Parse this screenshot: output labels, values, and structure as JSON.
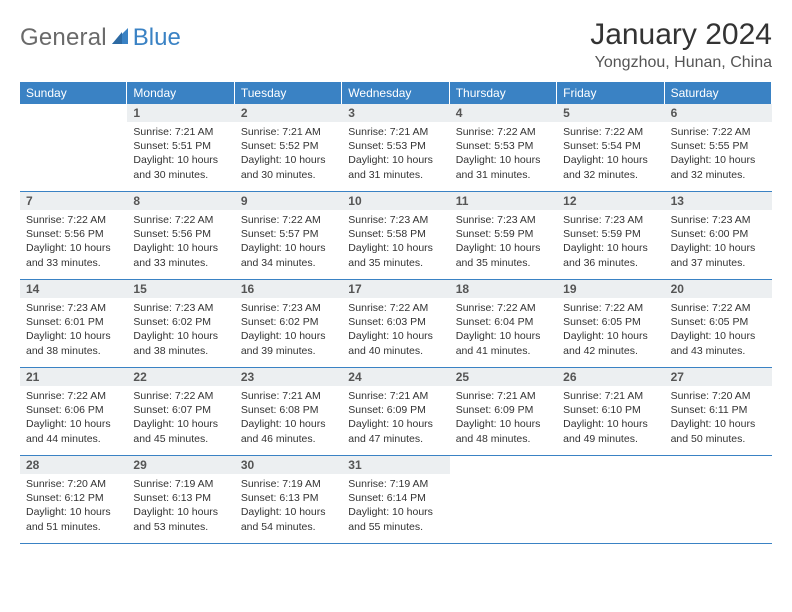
{
  "logo": {
    "text1": "General",
    "text2": "Blue"
  },
  "title": "January 2024",
  "location": "Yongzhou, Hunan, China",
  "colors": {
    "header_bg": "#3a82c4",
    "cell_num_bg": "#eceff1",
    "border": "#3a82c4",
    "logo_gray": "#6a6a6a",
    "logo_blue": "#3a82c4"
  },
  "fonts": {
    "title_size": 30,
    "location_size": 16,
    "dayhead_size": 12,
    "body_size": 10.5
  },
  "dayNames": [
    "Sunday",
    "Monday",
    "Tuesday",
    "Wednesday",
    "Thursday",
    "Friday",
    "Saturday"
  ],
  "weeks": [
    [
      {
        "empty": true
      },
      {
        "num": "1",
        "sunrise": "Sunrise: 7:21 AM",
        "sunset": "Sunset: 5:51 PM",
        "day1": "Daylight: 10 hours",
        "day2": "and 30 minutes."
      },
      {
        "num": "2",
        "sunrise": "Sunrise: 7:21 AM",
        "sunset": "Sunset: 5:52 PM",
        "day1": "Daylight: 10 hours",
        "day2": "and 30 minutes."
      },
      {
        "num": "3",
        "sunrise": "Sunrise: 7:21 AM",
        "sunset": "Sunset: 5:53 PM",
        "day1": "Daylight: 10 hours",
        "day2": "and 31 minutes."
      },
      {
        "num": "4",
        "sunrise": "Sunrise: 7:22 AM",
        "sunset": "Sunset: 5:53 PM",
        "day1": "Daylight: 10 hours",
        "day2": "and 31 minutes."
      },
      {
        "num": "5",
        "sunrise": "Sunrise: 7:22 AM",
        "sunset": "Sunset: 5:54 PM",
        "day1": "Daylight: 10 hours",
        "day2": "and 32 minutes."
      },
      {
        "num": "6",
        "sunrise": "Sunrise: 7:22 AM",
        "sunset": "Sunset: 5:55 PM",
        "day1": "Daylight: 10 hours",
        "day2": "and 32 minutes."
      }
    ],
    [
      {
        "num": "7",
        "sunrise": "Sunrise: 7:22 AM",
        "sunset": "Sunset: 5:56 PM",
        "day1": "Daylight: 10 hours",
        "day2": "and 33 minutes."
      },
      {
        "num": "8",
        "sunrise": "Sunrise: 7:22 AM",
        "sunset": "Sunset: 5:56 PM",
        "day1": "Daylight: 10 hours",
        "day2": "and 33 minutes."
      },
      {
        "num": "9",
        "sunrise": "Sunrise: 7:22 AM",
        "sunset": "Sunset: 5:57 PM",
        "day1": "Daylight: 10 hours",
        "day2": "and 34 minutes."
      },
      {
        "num": "10",
        "sunrise": "Sunrise: 7:23 AM",
        "sunset": "Sunset: 5:58 PM",
        "day1": "Daylight: 10 hours",
        "day2": "and 35 minutes."
      },
      {
        "num": "11",
        "sunrise": "Sunrise: 7:23 AM",
        "sunset": "Sunset: 5:59 PM",
        "day1": "Daylight: 10 hours",
        "day2": "and 35 minutes."
      },
      {
        "num": "12",
        "sunrise": "Sunrise: 7:23 AM",
        "sunset": "Sunset: 5:59 PM",
        "day1": "Daylight: 10 hours",
        "day2": "and 36 minutes."
      },
      {
        "num": "13",
        "sunrise": "Sunrise: 7:23 AM",
        "sunset": "Sunset: 6:00 PM",
        "day1": "Daylight: 10 hours",
        "day2": "and 37 minutes."
      }
    ],
    [
      {
        "num": "14",
        "sunrise": "Sunrise: 7:23 AM",
        "sunset": "Sunset: 6:01 PM",
        "day1": "Daylight: 10 hours",
        "day2": "and 38 minutes."
      },
      {
        "num": "15",
        "sunrise": "Sunrise: 7:23 AM",
        "sunset": "Sunset: 6:02 PM",
        "day1": "Daylight: 10 hours",
        "day2": "and 38 minutes."
      },
      {
        "num": "16",
        "sunrise": "Sunrise: 7:23 AM",
        "sunset": "Sunset: 6:02 PM",
        "day1": "Daylight: 10 hours",
        "day2": "and 39 minutes."
      },
      {
        "num": "17",
        "sunrise": "Sunrise: 7:22 AM",
        "sunset": "Sunset: 6:03 PM",
        "day1": "Daylight: 10 hours",
        "day2": "and 40 minutes."
      },
      {
        "num": "18",
        "sunrise": "Sunrise: 7:22 AM",
        "sunset": "Sunset: 6:04 PM",
        "day1": "Daylight: 10 hours",
        "day2": "and 41 minutes."
      },
      {
        "num": "19",
        "sunrise": "Sunrise: 7:22 AM",
        "sunset": "Sunset: 6:05 PM",
        "day1": "Daylight: 10 hours",
        "day2": "and 42 minutes."
      },
      {
        "num": "20",
        "sunrise": "Sunrise: 7:22 AM",
        "sunset": "Sunset: 6:05 PM",
        "day1": "Daylight: 10 hours",
        "day2": "and 43 minutes."
      }
    ],
    [
      {
        "num": "21",
        "sunrise": "Sunrise: 7:22 AM",
        "sunset": "Sunset: 6:06 PM",
        "day1": "Daylight: 10 hours",
        "day2": "and 44 minutes."
      },
      {
        "num": "22",
        "sunrise": "Sunrise: 7:22 AM",
        "sunset": "Sunset: 6:07 PM",
        "day1": "Daylight: 10 hours",
        "day2": "and 45 minutes."
      },
      {
        "num": "23",
        "sunrise": "Sunrise: 7:21 AM",
        "sunset": "Sunset: 6:08 PM",
        "day1": "Daylight: 10 hours",
        "day2": "and 46 minutes."
      },
      {
        "num": "24",
        "sunrise": "Sunrise: 7:21 AM",
        "sunset": "Sunset: 6:09 PM",
        "day1": "Daylight: 10 hours",
        "day2": "and 47 minutes."
      },
      {
        "num": "25",
        "sunrise": "Sunrise: 7:21 AM",
        "sunset": "Sunset: 6:09 PM",
        "day1": "Daylight: 10 hours",
        "day2": "and 48 minutes."
      },
      {
        "num": "26",
        "sunrise": "Sunrise: 7:21 AM",
        "sunset": "Sunset: 6:10 PM",
        "day1": "Daylight: 10 hours",
        "day2": "and 49 minutes."
      },
      {
        "num": "27",
        "sunrise": "Sunrise: 7:20 AM",
        "sunset": "Sunset: 6:11 PM",
        "day1": "Daylight: 10 hours",
        "day2": "and 50 minutes."
      }
    ],
    [
      {
        "num": "28",
        "sunrise": "Sunrise: 7:20 AM",
        "sunset": "Sunset: 6:12 PM",
        "day1": "Daylight: 10 hours",
        "day2": "and 51 minutes."
      },
      {
        "num": "29",
        "sunrise": "Sunrise: 7:19 AM",
        "sunset": "Sunset: 6:13 PM",
        "day1": "Daylight: 10 hours",
        "day2": "and 53 minutes."
      },
      {
        "num": "30",
        "sunrise": "Sunrise: 7:19 AM",
        "sunset": "Sunset: 6:13 PM",
        "day1": "Daylight: 10 hours",
        "day2": "and 54 minutes."
      },
      {
        "num": "31",
        "sunrise": "Sunrise: 7:19 AM",
        "sunset": "Sunset: 6:14 PM",
        "day1": "Daylight: 10 hours",
        "day2": "and 55 minutes."
      },
      {
        "empty": true
      },
      {
        "empty": true
      },
      {
        "empty": true
      }
    ]
  ]
}
